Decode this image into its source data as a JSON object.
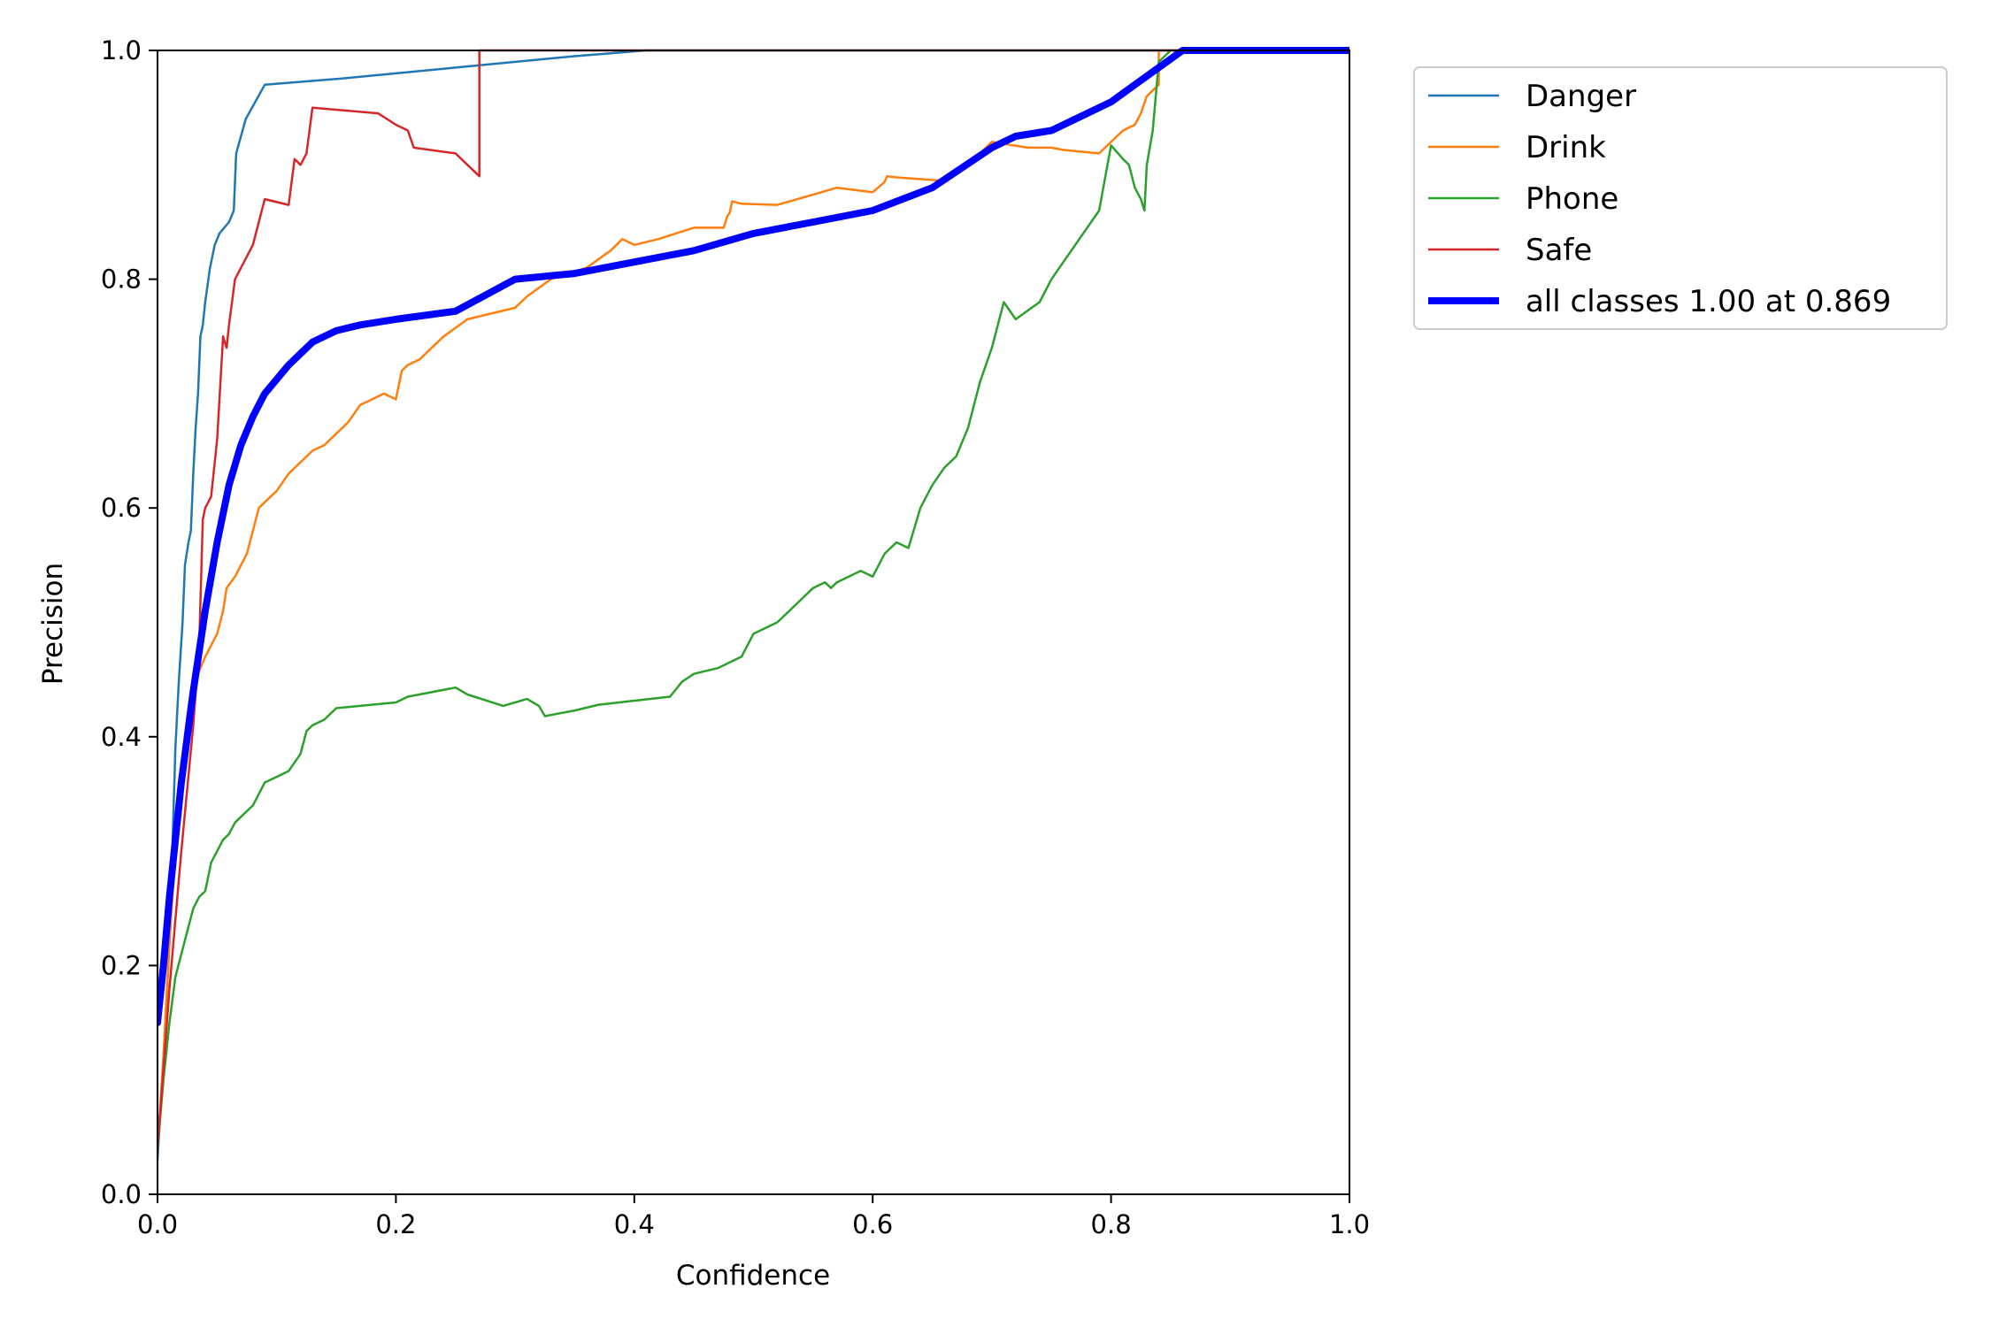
{
  "chart_data": {
    "type": "line",
    "title": "",
    "xlabel": "Confidence",
    "ylabel": "Precision",
    "xlim": [
      0,
      1
    ],
    "ylim": [
      0,
      1
    ],
    "xticks": [
      "0.0",
      "0.2",
      "0.4",
      "0.6",
      "0.8",
      "1.0"
    ],
    "yticks": [
      "0.0",
      "0.2",
      "0.4",
      "0.6",
      "0.8",
      "1.0"
    ],
    "grid": false,
    "legend_position": "outside-top-right",
    "series": [
      {
        "name": "Danger",
        "color": "#1f77b4",
        "width": "thin",
        "points": [
          [
            0,
            0.03
          ],
          [
            0.005,
            0.12
          ],
          [
            0.01,
            0.22
          ],
          [
            0.013,
            0.32
          ],
          [
            0.015,
            0.39
          ],
          [
            0.018,
            0.45
          ],
          [
            0.021,
            0.5
          ],
          [
            0.023,
            0.55
          ],
          [
            0.026,
            0.57
          ],
          [
            0.028,
            0.58
          ],
          [
            0.03,
            0.63
          ],
          [
            0.032,
            0.67
          ],
          [
            0.034,
            0.7
          ],
          [
            0.036,
            0.75
          ],
          [
            0.038,
            0.76
          ],
          [
            0.04,
            0.78
          ],
          [
            0.044,
            0.81
          ],
          [
            0.048,
            0.83
          ],
          [
            0.052,
            0.84
          ],
          [
            0.056,
            0.845
          ],
          [
            0.06,
            0.85
          ],
          [
            0.064,
            0.86
          ],
          [
            0.066,
            0.91
          ],
          [
            0.074,
            0.94
          ],
          [
            0.09,
            0.97
          ],
          [
            0.15,
            0.975
          ],
          [
            0.25,
            0.985
          ],
          [
            0.35,
            0.995
          ],
          [
            0.41,
            1.0
          ],
          [
            1.0,
            1.0
          ]
        ]
      },
      {
        "name": "Drink",
        "color": "#ff7f0e",
        "width": "thin",
        "points": [
          [
            0,
            0.04
          ],
          [
            0.005,
            0.12
          ],
          [
            0.01,
            0.22
          ],
          [
            0.015,
            0.3
          ],
          [
            0.02,
            0.37
          ],
          [
            0.024,
            0.41
          ],
          [
            0.028,
            0.44
          ],
          [
            0.032,
            0.45
          ],
          [
            0.036,
            0.46
          ],
          [
            0.04,
            0.47
          ],
          [
            0.045,
            0.48
          ],
          [
            0.05,
            0.49
          ],
          [
            0.055,
            0.51
          ],
          [
            0.058,
            0.53
          ],
          [
            0.065,
            0.54
          ],
          [
            0.07,
            0.55
          ],
          [
            0.075,
            0.56
          ],
          [
            0.08,
            0.58
          ],
          [
            0.085,
            0.6
          ],
          [
            0.09,
            0.605
          ],
          [
            0.1,
            0.615
          ],
          [
            0.11,
            0.63
          ],
          [
            0.12,
            0.64
          ],
          [
            0.13,
            0.65
          ],
          [
            0.14,
            0.655
          ],
          [
            0.15,
            0.665
          ],
          [
            0.16,
            0.675
          ],
          [
            0.17,
            0.69
          ],
          [
            0.18,
            0.695
          ],
          [
            0.19,
            0.7
          ],
          [
            0.2,
            0.695
          ],
          [
            0.205,
            0.72
          ],
          [
            0.21,
            0.725
          ],
          [
            0.22,
            0.73
          ],
          [
            0.23,
            0.74
          ],
          [
            0.24,
            0.75
          ],
          [
            0.26,
            0.765
          ],
          [
            0.3,
            0.775
          ],
          [
            0.31,
            0.785
          ],
          [
            0.33,
            0.8
          ],
          [
            0.36,
            0.81
          ],
          [
            0.38,
            0.825
          ],
          [
            0.39,
            0.835
          ],
          [
            0.4,
            0.83
          ],
          [
            0.42,
            0.835
          ],
          [
            0.45,
            0.845
          ],
          [
            0.475,
            0.845
          ],
          [
            0.478,
            0.855
          ],
          [
            0.48,
            0.858
          ],
          [
            0.482,
            0.868
          ],
          [
            0.49,
            0.866
          ],
          [
            0.52,
            0.865
          ],
          [
            0.57,
            0.88
          ],
          [
            0.6,
            0.876
          ],
          [
            0.61,
            0.885
          ],
          [
            0.612,
            0.89
          ],
          [
            0.62,
            0.889
          ],
          [
            0.66,
            0.886
          ],
          [
            0.68,
            0.9
          ],
          [
            0.69,
            0.91
          ],
          [
            0.7,
            0.92
          ],
          [
            0.73,
            0.915
          ],
          [
            0.75,
            0.915
          ],
          [
            0.76,
            0.913
          ],
          [
            0.79,
            0.91
          ],
          [
            0.8,
            0.92
          ],
          [
            0.81,
            0.93
          ],
          [
            0.82,
            0.935
          ],
          [
            0.825,
            0.945
          ],
          [
            0.83,
            0.96
          ],
          [
            0.84,
            0.97
          ],
          [
            0.84,
            1.0
          ],
          [
            1.0,
            1.0
          ]
        ]
      },
      {
        "name": "Phone",
        "color": "#2ca02c",
        "width": "thin",
        "points": [
          [
            0,
            0.04
          ],
          [
            0.005,
            0.1
          ],
          [
            0.01,
            0.15
          ],
          [
            0.015,
            0.19
          ],
          [
            0.02,
            0.21
          ],
          [
            0.025,
            0.23
          ],
          [
            0.03,
            0.25
          ],
          [
            0.035,
            0.26
          ],
          [
            0.04,
            0.265
          ],
          [
            0.045,
            0.29
          ],
          [
            0.05,
            0.3
          ],
          [
            0.055,
            0.31
          ],
          [
            0.06,
            0.315
          ],
          [
            0.065,
            0.325
          ],
          [
            0.07,
            0.33
          ],
          [
            0.08,
            0.34
          ],
          [
            0.09,
            0.36
          ],
          [
            0.1,
            0.365
          ],
          [
            0.11,
            0.37
          ],
          [
            0.12,
            0.385
          ],
          [
            0.125,
            0.405
          ],
          [
            0.13,
            0.41
          ],
          [
            0.14,
            0.415
          ],
          [
            0.15,
            0.425
          ],
          [
            0.2,
            0.43
          ],
          [
            0.21,
            0.435
          ],
          [
            0.25,
            0.443
          ],
          [
            0.26,
            0.437
          ],
          [
            0.29,
            0.427
          ],
          [
            0.31,
            0.433
          ],
          [
            0.32,
            0.427
          ],
          [
            0.325,
            0.418
          ],
          [
            0.35,
            0.423
          ],
          [
            0.37,
            0.428
          ],
          [
            0.43,
            0.435
          ],
          [
            0.44,
            0.448
          ],
          [
            0.45,
            0.455
          ],
          [
            0.47,
            0.46
          ],
          [
            0.49,
            0.47
          ],
          [
            0.5,
            0.49
          ],
          [
            0.52,
            0.5
          ],
          [
            0.53,
            0.51
          ],
          [
            0.54,
            0.52
          ],
          [
            0.55,
            0.53
          ],
          [
            0.56,
            0.535
          ],
          [
            0.565,
            0.53
          ],
          [
            0.57,
            0.535
          ],
          [
            0.59,
            0.545
          ],
          [
            0.6,
            0.54
          ],
          [
            0.61,
            0.56
          ],
          [
            0.62,
            0.57
          ],
          [
            0.63,
            0.565
          ],
          [
            0.64,
            0.6
          ],
          [
            0.65,
            0.62
          ],
          [
            0.66,
            0.635
          ],
          [
            0.67,
            0.645
          ],
          [
            0.68,
            0.67
          ],
          [
            0.69,
            0.71
          ],
          [
            0.7,
            0.74
          ],
          [
            0.71,
            0.78
          ],
          [
            0.72,
            0.765
          ],
          [
            0.74,
            0.78
          ],
          [
            0.75,
            0.8
          ],
          [
            0.76,
            0.815
          ],
          [
            0.79,
            0.86
          ],
          [
            0.8,
            0.917
          ],
          [
            0.81,
            0.905
          ],
          [
            0.815,
            0.9
          ],
          [
            0.82,
            0.88
          ],
          [
            0.825,
            0.87
          ],
          [
            0.828,
            0.86
          ],
          [
            0.83,
            0.9
          ],
          [
            0.835,
            0.93
          ],
          [
            0.84,
            0.99
          ],
          [
            0.85,
            1.0
          ],
          [
            1.0,
            1.0
          ]
        ]
      },
      {
        "name": "Safe",
        "color": "#d62728",
        "width": "thin",
        "points": [
          [
            0,
            0.04
          ],
          [
            0.01,
            0.18
          ],
          [
            0.02,
            0.3
          ],
          [
            0.03,
            0.41
          ],
          [
            0.035,
            0.48
          ],
          [
            0.038,
            0.59
          ],
          [
            0.04,
            0.6
          ],
          [
            0.045,
            0.61
          ],
          [
            0.05,
            0.66
          ],
          [
            0.055,
            0.75
          ],
          [
            0.058,
            0.74
          ],
          [
            0.06,
            0.76
          ],
          [
            0.065,
            0.8
          ],
          [
            0.08,
            0.83
          ],
          [
            0.09,
            0.87
          ],
          [
            0.11,
            0.865
          ],
          [
            0.115,
            0.905
          ],
          [
            0.12,
            0.9
          ],
          [
            0.125,
            0.91
          ],
          [
            0.13,
            0.95
          ],
          [
            0.185,
            0.945
          ],
          [
            0.2,
            0.935
          ],
          [
            0.21,
            0.93
          ],
          [
            0.215,
            0.915
          ],
          [
            0.25,
            0.91
          ],
          [
            0.26,
            0.9
          ],
          [
            0.27,
            0.89
          ],
          [
            0.27,
            0.95
          ],
          [
            0.27,
            1.0
          ],
          [
            0.28,
            1.0
          ],
          [
            1.0,
            1.0
          ]
        ]
      },
      {
        "name": "all classes 1.00 at 0.869",
        "color": "#0000ff",
        "width": "thick",
        "points": [
          [
            0,
            0.15
          ],
          [
            0.005,
            0.2
          ],
          [
            0.01,
            0.26
          ],
          [
            0.02,
            0.36
          ],
          [
            0.03,
            0.44
          ],
          [
            0.04,
            0.51
          ],
          [
            0.05,
            0.57
          ],
          [
            0.06,
            0.62
          ],
          [
            0.07,
            0.655
          ],
          [
            0.08,
            0.68
          ],
          [
            0.09,
            0.7
          ],
          [
            0.11,
            0.725
          ],
          [
            0.13,
            0.745
          ],
          [
            0.15,
            0.755
          ],
          [
            0.17,
            0.76
          ],
          [
            0.2,
            0.765
          ],
          [
            0.25,
            0.772
          ],
          [
            0.3,
            0.8
          ],
          [
            0.35,
            0.805
          ],
          [
            0.4,
            0.815
          ],
          [
            0.45,
            0.825
          ],
          [
            0.5,
            0.84
          ],
          [
            0.55,
            0.85
          ],
          [
            0.6,
            0.86
          ],
          [
            0.65,
            0.88
          ],
          [
            0.7,
            0.915
          ],
          [
            0.72,
            0.925
          ],
          [
            0.75,
            0.93
          ],
          [
            0.78,
            0.945
          ],
          [
            0.8,
            0.955
          ],
          [
            0.82,
            0.97
          ],
          [
            0.84,
            0.985
          ],
          [
            0.86,
            1.0
          ],
          [
            1.0,
            1.0
          ]
        ]
      }
    ]
  }
}
